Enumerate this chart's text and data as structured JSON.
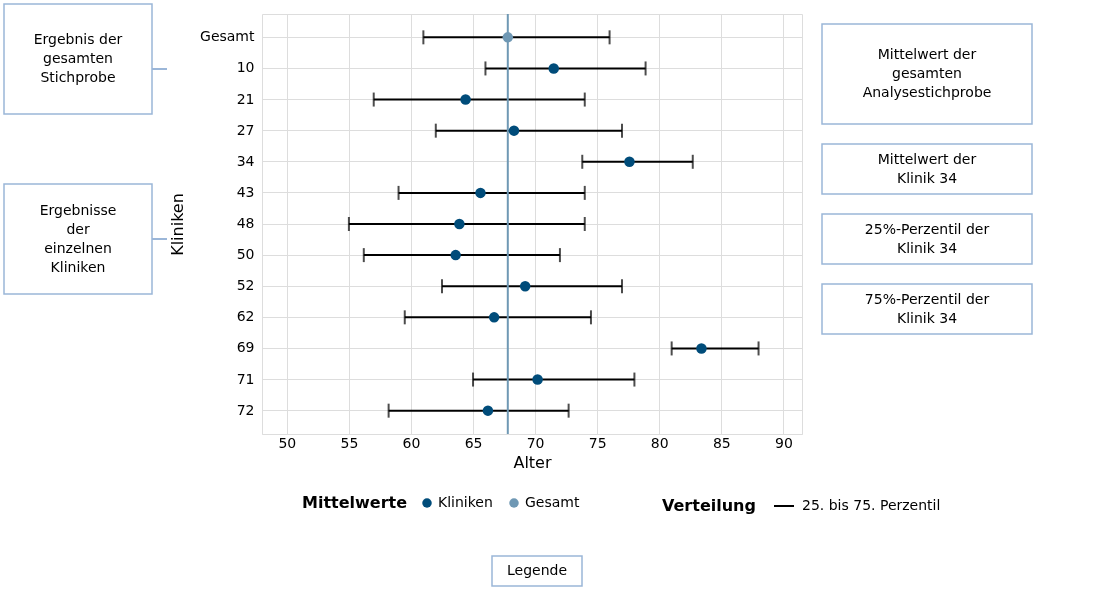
{
  "chart_data": {
    "type": "scatter",
    "orientation": "horizontal",
    "categories": [
      "Gesamt",
      "10",
      "21",
      "27",
      "34",
      "43",
      "48",
      "50",
      "52",
      "62",
      "69",
      "71",
      "72"
    ],
    "series": [
      {
        "name": "Kliniken",
        "color": "#004c7a",
        "values": [
          null,
          71.5,
          64.4,
          68.3,
          77.6,
          65.6,
          63.9,
          63.6,
          69.2,
          66.7,
          83.4,
          70.2,
          66.2
        ],
        "errors": [
          null,
          [
            66.0,
            78.9
          ],
          [
            57.0,
            74.0
          ],
          [
            62.0,
            77.0
          ],
          [
            73.8,
            82.7
          ],
          [
            59.0,
            74.0
          ],
          [
            55.0,
            74.0
          ],
          [
            56.2,
            72.0
          ],
          [
            62.5,
            77.0
          ],
          [
            59.5,
            74.5
          ],
          [
            81.0,
            88.0
          ],
          [
            65.0,
            78.0
          ],
          [
            58.2,
            72.7
          ]
        ]
      },
      {
        "name": "Gesamt",
        "color": "#6f98b4",
        "values": [
          67.8,
          null,
          null,
          null,
          null,
          null,
          null,
          null,
          null,
          null,
          null,
          null,
          null
        ],
        "errors": [
          [
            61.0,
            76.0
          ],
          null,
          null,
          null,
          null,
          null,
          null,
          null,
          null,
          null,
          null,
          null,
          null
        ]
      }
    ],
    "xlim": [
      48,
      91.5
    ],
    "xticks": [
      50,
      55,
      60,
      65,
      70,
      75,
      80,
      85,
      90
    ],
    "xlabel": "Alter",
    "ylabel": "Kliniken",
    "ref_lines": [
      {
        "axis": "x",
        "value": 67.8,
        "color": "#6f98b4"
      }
    ],
    "grid": true,
    "marker": "circle",
    "legend": "bottom",
    "legend_title": "Mittelwerte",
    "annotations": [
      "Ergebnis der gesamten Stichprobe",
      "Ergebnisse der einzelnen Kliniken",
      "Mittelwert der gesamten Analysestichprobe",
      "Mittelwert der Klinik 34",
      "25%-Perzentil der Klinik 34",
      "75%-Perzentil der Klinik 34",
      "Legende",
      "Verteilung",
      "25. bis 75. Perzentil"
    ]
  }
}
